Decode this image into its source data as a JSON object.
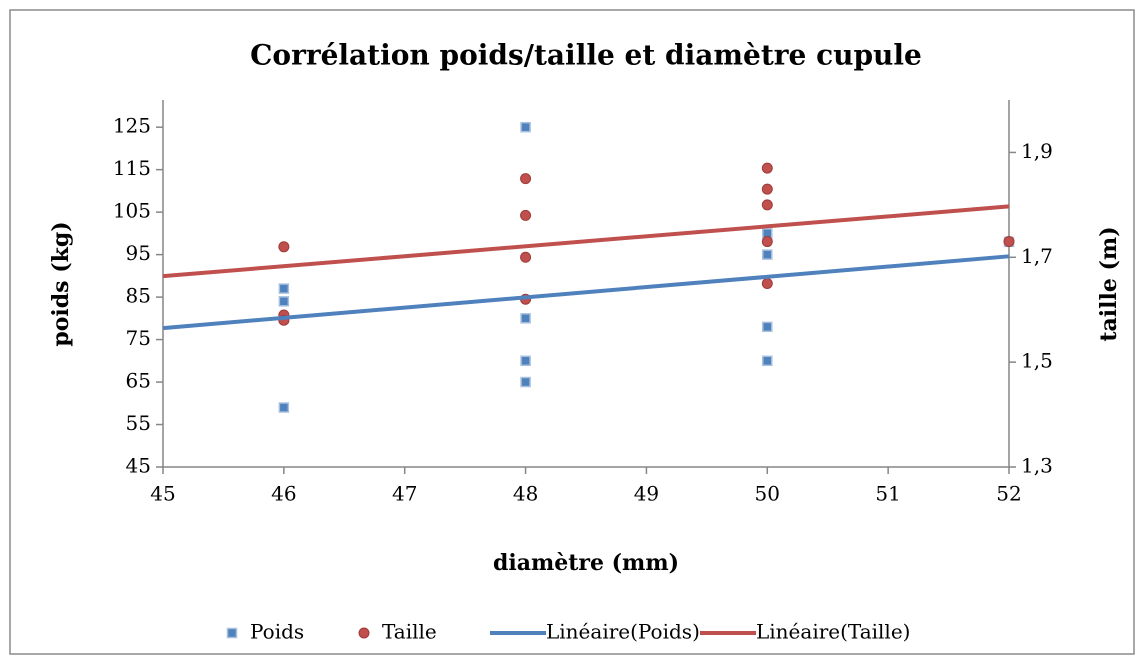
{
  "chart_data": {
    "type": "scatter",
    "title": "Corrélation poids/taille et diamètre cupule",
    "xlabel": "diamètre (mm)",
    "ylabel": "poids (kg)",
    "y2label": "taille (m)",
    "xlim": [
      45,
      52
    ],
    "xticks": [
      45,
      46,
      47,
      48,
      49,
      50,
      51,
      52
    ],
    "ylim": [
      45,
      131.4
    ],
    "yticks": [
      45,
      55,
      65,
      75,
      85,
      95,
      105,
      115,
      125
    ],
    "y2lim": [
      1.3,
      2.0
    ],
    "y2ticks": [
      {
        "value": 1.3,
        "label": "1,3"
      },
      {
        "value": 1.5,
        "label": "1,5"
      },
      {
        "value": 1.7,
        "label": "1,7"
      },
      {
        "value": 1.9,
        "label": "1,9"
      }
    ],
    "grid": false,
    "legend": "bottom",
    "series": [
      {
        "name": "Poids",
        "color": "#4f81bd",
        "mode": "markers",
        "x": [
          46,
          46,
          46,
          46,
          48,
          48,
          48,
          48,
          50,
          50,
          50,
          50,
          52
        ],
        "values": [
          87,
          84,
          80,
          59,
          125,
          80,
          70,
          65,
          100,
          95,
          78,
          70,
          98
        ]
      },
      {
        "name": "Taille",
        "color": "#c0504d",
        "mode": "markers",
        "axis": "y2",
        "x": [
          46,
          46,
          46,
          48,
          48,
          48,
          48,
          50,
          50,
          50,
          50,
          50,
          52
        ],
        "values": [
          1.72,
          1.59,
          1.58,
          1.85,
          1.78,
          1.7,
          1.62,
          1.87,
          1.83,
          1.8,
          1.73,
          1.65,
          1.73
        ]
      },
      {
        "name": "Linéaire(Poids)",
        "color": "#4f81bd",
        "mode": "line",
        "x": [
          45,
          52
        ],
        "values": [
          77.7,
          94.6
        ]
      },
      {
        "name": "Linéaire(Taille)",
        "color": "#c0504d",
        "mode": "line",
        "axis": "y2",
        "x": [
          45,
          52
        ],
        "values": [
          1.664,
          1.797
        ]
      }
    ]
  }
}
